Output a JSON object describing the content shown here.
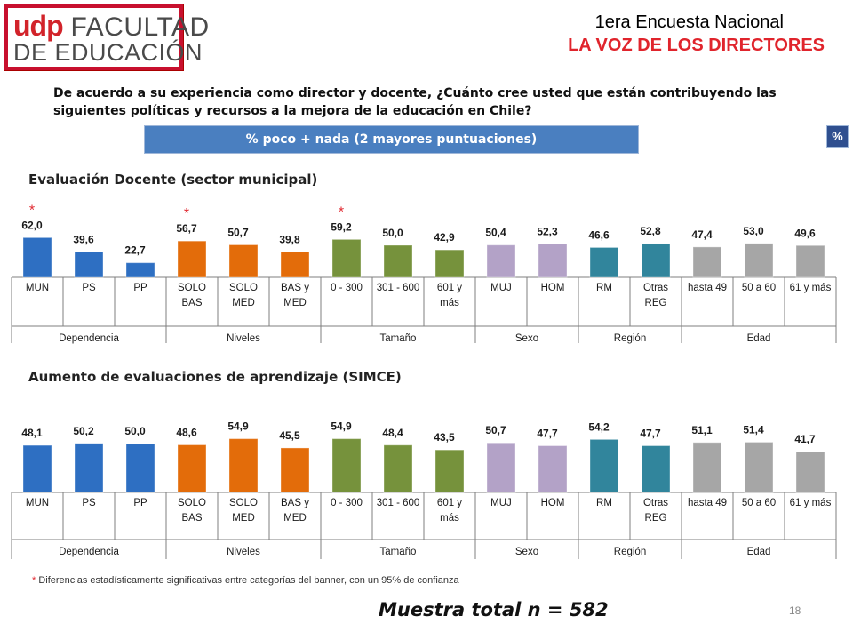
{
  "header": {
    "logo_brand": "udp",
    "logo_line1": "FACULTAD",
    "logo_line2": "DE EDUCACIÓN",
    "title": "1era Encuesta Nacional",
    "subtitle": "LA VOZ DE LOS DIRECTORES"
  },
  "question": "De acuerdo a su experiencia como director y docente, ¿Cuánto cree usted que están contribuyendo las siguientes políticas y recursos a la mejora de la educación en Chile?",
  "banner": "% poco + nada (2 mayores puntuaciones)",
  "pct_badge": "%",
  "footnote": {
    "star": "*",
    "text": " Diferencias estadísticamente significativas entre categorías del banner, con un 95% de confianza"
  },
  "sample": "Muestra total n = 582",
  "page_number": "18",
  "colors": {
    "Dependencia": "#2e6fc2",
    "Niveles": "#e36c0a",
    "Tamaño": "#76923c",
    "Sexo": "#b3a2c7",
    "Región": "#31859c",
    "Edad": "#a6a6a6",
    "star": "#e0242c"
  },
  "chart_data": [
    {
      "type": "bar",
      "title": "Evaluación Docente (sector municipal)",
      "categories": [
        "MUN",
        "PS",
        "PP",
        "SOLO BAS",
        "SOLO MED",
        "BAS y MED",
        "0 - 300",
        "301 - 600",
        "601 y más",
        "MUJ",
        "HOM",
        "RM",
        "Otras REG",
        "hasta 49",
        "50 a 60",
        "61 y más"
      ],
      "groups": [
        {
          "name": "Dependencia",
          "count": 3
        },
        {
          "name": "Niveles",
          "count": 3
        },
        {
          "name": "Tamaño",
          "count": 3
        },
        {
          "name": "Sexo",
          "count": 2
        },
        {
          "name": "Región",
          "count": 2
        },
        {
          "name": "Edad",
          "count": 3
        }
      ],
      "values": [
        62.0,
        39.6,
        22.7,
        56.7,
        50.7,
        39.8,
        59.2,
        50.0,
        42.9,
        50.4,
        52.3,
        46.6,
        52.8,
        47.4,
        53.0,
        49.6
      ],
      "labels": [
        "62,0",
        "39,6",
        "22,7",
        "56,7",
        "50,7",
        "39,8",
        "59,2",
        "50,0",
        "42,9",
        "50,4",
        "52,3",
        "46,6",
        "52,8",
        "47,4",
        "53,0",
        "49,6"
      ],
      "significant": [
        0,
        3,
        6
      ],
      "ylim": [
        0,
        100
      ]
    },
    {
      "type": "bar",
      "title": "Aumento de evaluaciones de aprendizaje (SIMCE)",
      "categories": [
        "MUN",
        "PS",
        "PP",
        "SOLO BAS",
        "SOLO MED",
        "BAS y MED",
        "0 - 300",
        "301 - 600",
        "601 y más",
        "MUJ",
        "HOM",
        "RM",
        "Otras REG",
        "hasta 49",
        "50 a 60",
        "61 y más"
      ],
      "groups": [
        {
          "name": "Dependencia",
          "count": 3
        },
        {
          "name": "Niveles",
          "count": 3
        },
        {
          "name": "Tamaño",
          "count": 3
        },
        {
          "name": "Sexo",
          "count": 2
        },
        {
          "name": "Región",
          "count": 2
        },
        {
          "name": "Edad",
          "count": 3
        }
      ],
      "values": [
        48.1,
        50.2,
        50.0,
        48.6,
        54.9,
        45.5,
        54.9,
        48.4,
        43.5,
        50.7,
        47.7,
        54.2,
        47.7,
        51.1,
        51.4,
        41.7
      ],
      "labels": [
        "48,1",
        "50,2",
        "50,0",
        "48,6",
        "54,9",
        "45,5",
        "54,9",
        "48,4",
        "43,5",
        "50,7",
        "47,7",
        "54,2",
        "47,7",
        "51,1",
        "51,4",
        "41,7"
      ],
      "significant": [],
      "ylim": [
        0,
        100
      ]
    }
  ]
}
